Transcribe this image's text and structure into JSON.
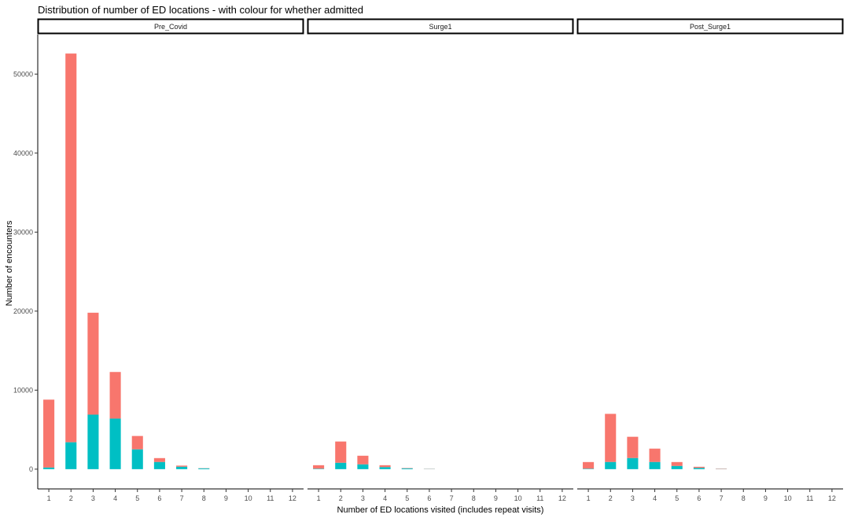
{
  "chart_data": {
    "type": "bar",
    "stacked": true,
    "title": "Distribution of number of ED locations - with colour for whether admitted",
    "xlabel": "Number of ED locations visited (includes repeat visits)",
    "ylabel": "Number of encounters",
    "x_ticks": [
      "1",
      "2",
      "3",
      "4",
      "5",
      "6",
      "7",
      "8",
      "9",
      "10",
      "11",
      "12"
    ],
    "y_ticks": [
      0,
      10000,
      20000,
      30000,
      40000,
      50000
    ],
    "y_tick_labels": [
      "0",
      "10000",
      "20000",
      "30000",
      "40000",
      "50000"
    ],
    "ylim": [
      -2500,
      55000
    ],
    "grid": false,
    "legend": "none",
    "colors": {
      "not_admitted": "#F8766D",
      "admitted": "#00BFC4"
    },
    "panels": [
      {
        "name": "Pre_Covid",
        "categories": [
          1,
          2,
          3,
          4,
          5,
          6,
          7,
          8
        ],
        "admitted": [
          200,
          3400,
          6900,
          6400,
          2500,
          900,
          300,
          100
        ],
        "not_admitted": [
          8600,
          49200,
          12900,
          5900,
          1700,
          500,
          150,
          30
        ]
      },
      {
        "name": "Surge1",
        "categories": [
          1,
          2,
          3,
          4,
          5,
          6
        ],
        "admitted": [
          50,
          800,
          600,
          250,
          100,
          20
        ],
        "not_admitted": [
          450,
          2700,
          1100,
          250,
          50,
          30
        ]
      },
      {
        "name": "Post_Surge1",
        "categories": [
          1,
          2,
          3,
          4,
          5,
          6,
          7
        ],
        "admitted": [
          50,
          900,
          1400,
          900,
          400,
          150,
          20
        ],
        "not_admitted": [
          850,
          6100,
          2700,
          1700,
          500,
          150,
          50
        ]
      }
    ]
  }
}
